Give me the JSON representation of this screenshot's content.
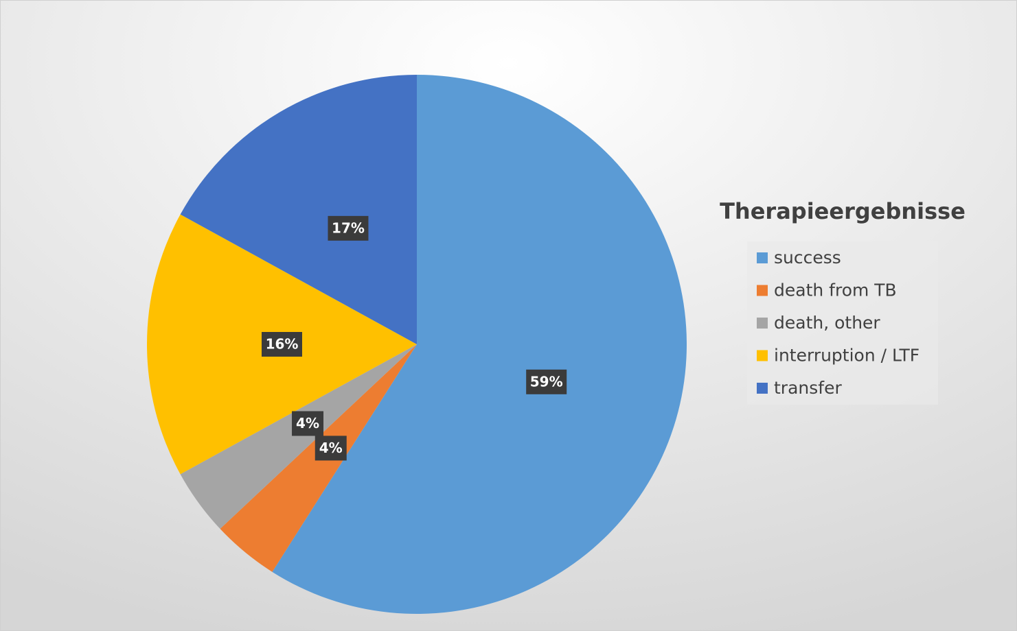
{
  "chart_data": {
    "type": "pie",
    "legend_title": "Therapieergebnisse",
    "categories": [
      "success",
      "death from TB",
      "death, other",
      "interruption / LTF",
      "transfer"
    ],
    "values": [
      59,
      4,
      4,
      16,
      17
    ],
    "value_labels": [
      "59%",
      "4%",
      "4%",
      "16%",
      "17%"
    ],
    "colors": [
      "#5b9bd5",
      "#ed7d31",
      "#a5a5a5",
      "#ffc000",
      "#4472c4"
    ],
    "legend": "right"
  }
}
